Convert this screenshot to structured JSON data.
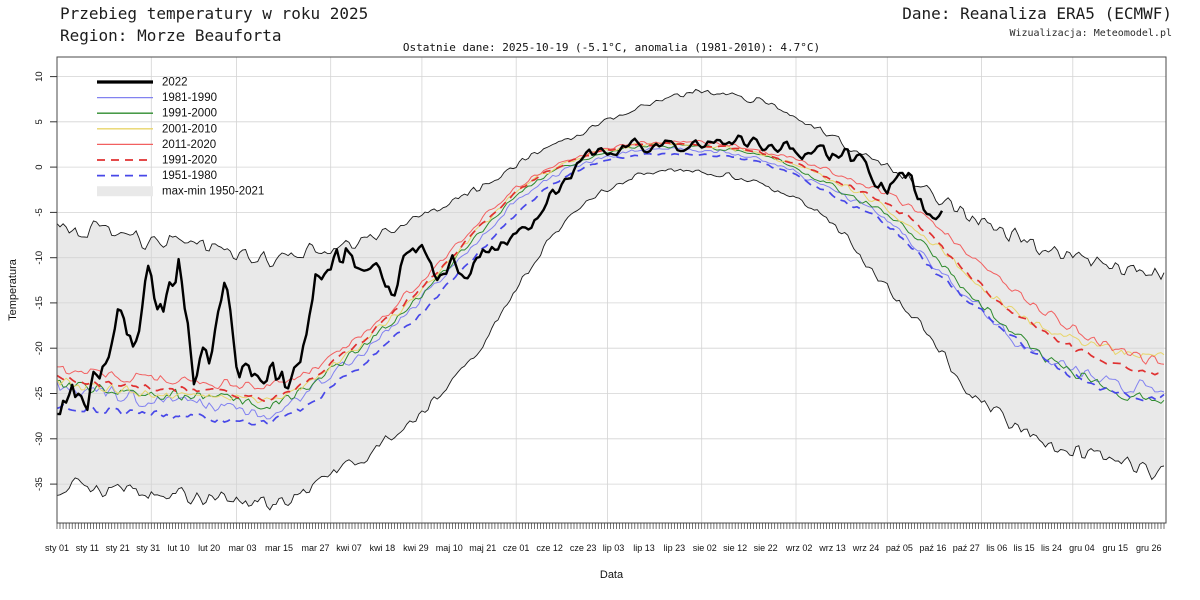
{
  "header": {
    "title": "Przebieg temperatury w roku 2025",
    "region": "Region: Morze Beauforta",
    "source": "Dane: Reanaliza ERA5 (ECMWF)",
    "credit": "Wizualizacja: Meteomodel.pl",
    "last_data": "Ostatnie dane: 2025-10-19 (-5.1°C, anomalia (1981-2010): 4.7°C)"
  },
  "chart_data": {
    "type": "line",
    "title": "Przebieg temperatury w roku 2025",
    "subtitle": "Ostatnie dane: 2025-10-19 (-5.1°C, anomalia (1981-2010): 4.7°C)",
    "xlabel": "Data",
    "ylabel": "Temperatura",
    "ylim": [
      -39.3,
      12.16
    ],
    "yticks": [
      10,
      5,
      0,
      -5,
      -10,
      -15,
      -20,
      -25,
      -30,
      -35
    ],
    "grid": true,
    "grid_color": "#d4d4d4",
    "x_month_grid_days": [
      32,
      60,
      91,
      121,
      152,
      182,
      213,
      244,
      274,
      305,
      335
    ],
    "x_tick_labels": [
      {
        "d": 1,
        "l": "sty 01"
      },
      {
        "d": 11,
        "l": "sty 11"
      },
      {
        "d": 21,
        "l": "sty 21"
      },
      {
        "d": 31,
        "l": "sty 31"
      },
      {
        "d": 41,
        "l": "lut 10"
      },
      {
        "d": 51,
        "l": "lut 20"
      },
      {
        "d": 62,
        "l": "mar 03"
      },
      {
        "d": 74,
        "l": "mar 15"
      },
      {
        "d": 86,
        "l": "mar 27"
      },
      {
        "d": 97,
        "l": "kwi 07"
      },
      {
        "d": 108,
        "l": "kwi 18"
      },
      {
        "d": 119,
        "l": "kwi 29"
      },
      {
        "d": 130,
        "l": "maj 10"
      },
      {
        "d": 141,
        "l": "maj 21"
      },
      {
        "d": 152,
        "l": "cze 01"
      },
      {
        "d": 163,
        "l": "cze 12"
      },
      {
        "d": 174,
        "l": "cze 23"
      },
      {
        "d": 184,
        "l": "lip 03"
      },
      {
        "d": 194,
        "l": "lip 13"
      },
      {
        "d": 204,
        "l": "lip 23"
      },
      {
        "d": 214,
        "l": "sie 02"
      },
      {
        "d": 224,
        "l": "sie 12"
      },
      {
        "d": 234,
        "l": "sie 22"
      },
      {
        "d": 245,
        "l": "wrz 02"
      },
      {
        "d": 256,
        "l": "wrz 13"
      },
      {
        "d": 267,
        "l": "wrz 24"
      },
      {
        "d": 278,
        "l": "paź 05"
      },
      {
        "d": 289,
        "l": "paź 16"
      },
      {
        "d": 300,
        "l": "paź 27"
      },
      {
        "d": 310,
        "l": "lis 06"
      },
      {
        "d": 319,
        "l": "lis 15"
      },
      {
        "d": 328,
        "l": "lis 24"
      },
      {
        "d": 338,
        "l": "gru 04"
      },
      {
        "d": 349,
        "l": "gru 15"
      },
      {
        "d": 360,
        "l": "gru 26"
      }
    ],
    "anchor_days_10": [
      1,
      11,
      21,
      31,
      41,
      51,
      61,
      71,
      81,
      91,
      101,
      111,
      121,
      131,
      141,
      151,
      161,
      171,
      181,
      191,
      201,
      211,
      221,
      231,
      241,
      251,
      261,
      271,
      281,
      291,
      301,
      311,
      321,
      331,
      341,
      351,
      361
    ],
    "band": {
      "label": "max-min 1950-2021",
      "fill": "#e9e9e9",
      "edge_color": "#1a1a1a",
      "jitter": 1.5,
      "seed_max": 11,
      "seed_min": 12,
      "max": [
        -6.5,
        -7.5,
        -7,
        -8,
        -7.5,
        -9,
        -9.5,
        -10,
        -9.5,
        -9,
        -8,
        -7,
        -5.5,
        -4,
        -2,
        0,
        2,
        3.5,
        5,
        6.5,
        7.5,
        8.5,
        8,
        7.5,
        6,
        4.5,
        2.5,
        0.5,
        -1.5,
        -3.5,
        -5.5,
        -7,
        -8.5,
        -9.5,
        -10.5,
        -11,
        -11.5
      ],
      "min": [
        -35,
        -35.5,
        -35.8,
        -36,
        -36.2,
        -36.5,
        -36.8,
        -37,
        -36,
        -34,
        -32,
        -30,
        -27,
        -23.5,
        -19.5,
        -14,
        -9,
        -5,
        -2.5,
        -1,
        -0.3,
        -0.5,
        -0.8,
        -1.5,
        -3,
        -5,
        -8,
        -12,
        -16,
        -20,
        -25,
        -27.5,
        -29.5,
        -31,
        -32,
        -33,
        -33.5
      ]
    },
    "series": [
      {
        "name": "2022",
        "color": "#000000",
        "width": 2.4,
        "legend_width": 3.2,
        "dash": null,
        "jitter": 2.8,
        "seed": 31,
        "z": 7,
        "day_range": [
          1,
          292
        ],
        "days": [
          1,
          6,
          11,
          16,
          21,
          26,
          31,
          36,
          41,
          46,
          51,
          56,
          61,
          66,
          71,
          76,
          81,
          86,
          91,
          96,
          101,
          106,
          111,
          116,
          121,
          126,
          131,
          136,
          141,
          146,
          151,
          156,
          161,
          166,
          171,
          176,
          181,
          186,
          191,
          196,
          201,
          206,
          211,
          216,
          221,
          226,
          231,
          236,
          241,
          246,
          251,
          256,
          261,
          266,
          271,
          276,
          281,
          286,
          291,
          292
        ],
        "values": [
          -27.5,
          -24.5,
          -25.5,
          -22.5,
          -14,
          -20,
          -12,
          -18,
          -10,
          -22.5,
          -21.5,
          -13,
          -23.5,
          -23,
          -22.5,
          -23.5,
          -21,
          -12,
          -10.5,
          -9,
          -12.5,
          -10,
          -14,
          -10,
          -9,
          -12,
          -10.5,
          -12,
          -9.5,
          -8.5,
          -8,
          -7,
          -4.5,
          -2,
          -0.5,
          1.5,
          2.2,
          1.8,
          2.6,
          1.6,
          2.8,
          2.2,
          2.6,
          3,
          2.4,
          2.8,
          2.6,
          2,
          2.4,
          1.2,
          2.2,
          1.4,
          1.2,
          0.4,
          -1.5,
          -2.4,
          -1.3,
          -3.8,
          -4.9,
          -5.1
        ]
      },
      {
        "name": "1981-1990",
        "color": "#8282f0",
        "width": 1,
        "legend_width": 1.3,
        "dash": null,
        "jitter": 1.15,
        "seed": 21,
        "z": 1,
        "day_range": [
          1,
          365
        ],
        "values": [
          -24.3,
          -24.8,
          -25.2,
          -25.5,
          -25.6,
          -26,
          -26.5,
          -27.5,
          -25.5,
          -23,
          -20.5,
          -17.5,
          -14.5,
          -11,
          -7.5,
          -4,
          -1.5,
          0,
          1.2,
          1.8,
          2,
          1.9,
          1.7,
          1,
          0,
          -1.8,
          -3.5,
          -5,
          -7.8,
          -11.5,
          -14.5,
          -17.5,
          -20.5,
          -22,
          -23,
          -24,
          -24.5
        ]
      },
      {
        "name": "1991-2000",
        "color": "#2e8b2e",
        "width": 1,
        "legend_width": 1.3,
        "dash": null,
        "jitter": 0.95,
        "seed": 22,
        "z": 2,
        "day_range": [
          1,
          365
        ],
        "values": [
          -24,
          -24.4,
          -24.8,
          -25,
          -25.2,
          -25.5,
          -26,
          -26.5,
          -25,
          -22.5,
          -20,
          -17,
          -14,
          -10.5,
          -7,
          -3.5,
          -1,
          0.5,
          1.5,
          2.2,
          2.4,
          2.3,
          2,
          1.4,
          0.4,
          -1.2,
          -3,
          -4.5,
          -7,
          -10.5,
          -14,
          -17,
          -20,
          -22,
          -23.5,
          -25,
          -26
        ]
      },
      {
        "name": "2001-2010",
        "color": "#e8d56a",
        "width": 1,
        "legend_width": 1.3,
        "dash": null,
        "jitter": 0.95,
        "seed": 23,
        "z": 3,
        "day_range": [
          1,
          365
        ],
        "values": [
          -23.8,
          -24.2,
          -24.5,
          -24.8,
          -25,
          -25.2,
          -25.5,
          -26,
          -24.5,
          -22,
          -19.5,
          -16.5,
          -13.5,
          -10,
          -6.5,
          -3,
          -0.8,
          0.8,
          1.8,
          2.4,
          2.6,
          2.5,
          2.2,
          1.6,
          0.6,
          -0.8,
          -2.2,
          -4,
          -6.2,
          -9,
          -12,
          -15,
          -17,
          -18.5,
          -19.5,
          -20.5,
          -21
        ]
      },
      {
        "name": "2011-2020",
        "color": "#f26060",
        "width": 1,
        "legend_width": 1.3,
        "dash": null,
        "jitter": 0.95,
        "seed": 24,
        "z": 4,
        "day_range": [
          1,
          365
        ],
        "values": [
          -22.3,
          -22.8,
          -23,
          -23.2,
          -23.4,
          -23.6,
          -24,
          -24.3,
          -23,
          -21,
          -18.5,
          -15.5,
          -12.5,
          -9,
          -5.5,
          -2.5,
          -0.3,
          1,
          2,
          2.6,
          2.8,
          2.7,
          2.5,
          2,
          1.2,
          0,
          -1.2,
          -2.5,
          -4.2,
          -6.5,
          -9.5,
          -12.5,
          -15,
          -17,
          -19,
          -20.5,
          -21.5
        ]
      },
      {
        "name": "1991-2020",
        "color": "#e03030",
        "width": 1.7,
        "legend_width": 1.8,
        "dash": [
          8,
          6
        ],
        "jitter": 0.55,
        "seed": 25,
        "z": 5,
        "day_range": [
          1,
          365
        ],
        "values": [
          -23.3,
          -23.8,
          -24.1,
          -24.3,
          -24.5,
          -24.8,
          -25.2,
          -25.6,
          -24.2,
          -21.8,
          -19.3,
          -16.3,
          -13.3,
          -9.8,
          -6.3,
          -3,
          -0.7,
          0.8,
          1.8,
          2.4,
          2.6,
          2.5,
          2.2,
          1.7,
          0.7,
          -0.6,
          -2.1,
          -3.5,
          -5.5,
          -8.5,
          -12,
          -15,
          -17.3,
          -19.2,
          -20.7,
          -22,
          -22.8
        ]
      },
      {
        "name": "1951-1980",
        "color": "#4848e8",
        "width": 1.7,
        "legend_width": 1.8,
        "dash": [
          8,
          6
        ],
        "jitter": 0.6,
        "seed": 26,
        "z": 6,
        "day_range": [
          1,
          365
        ],
        "values": [
          -26.3,
          -26.8,
          -27,
          -27.2,
          -27.5,
          -27.8,
          -28,
          -28,
          -27,
          -24.5,
          -22,
          -19,
          -16,
          -12.5,
          -9,
          -5.5,
          -2.5,
          -0.5,
          0.8,
          1.3,
          1.5,
          1.4,
          1.2,
          0.6,
          -0.5,
          -2.2,
          -4,
          -5.5,
          -8.5,
          -12,
          -15,
          -17.5,
          -20,
          -22.5,
          -24,
          -25,
          -25.5
        ]
      }
    ],
    "legend_position": "top-left"
  }
}
